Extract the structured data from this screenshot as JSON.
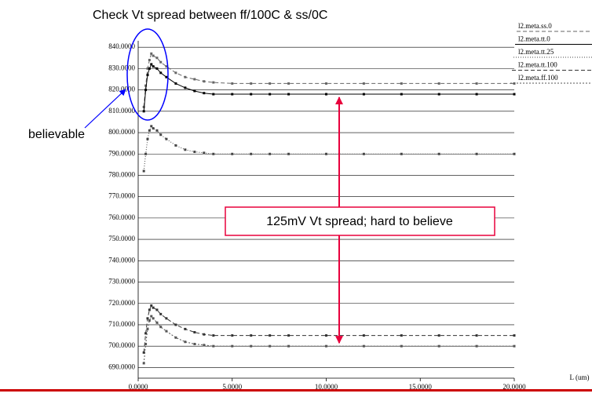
{
  "chart_data": {
    "type": "line",
    "title": "Check Vt spread between ff/100C & ss/0C",
    "xlabel": "L (um)",
    "annotations": [
      "believable",
      "125mV Vt spread; hard to believe"
    ],
    "x": [
      0.3,
      0.4,
      0.5,
      0.6,
      0.7,
      0.8,
      1.0,
      1.2,
      1.5,
      2.0,
      2.5,
      3.0,
      3.5,
      4.0,
      5,
      6,
      7,
      8,
      10,
      12,
      14,
      16,
      18,
      20
    ],
    "series": [
      {
        "name": "l2.meta.ss.0",
        "color": "#666666",
        "dash": "5,3",
        "values": [
          812,
          822,
          830,
          834,
          837,
          836,
          835,
          833,
          831,
          828,
          826,
          825,
          824,
          823.5,
          823,
          823,
          823,
          823,
          823,
          823,
          823,
          823,
          823,
          823
        ]
      },
      {
        "name": "l2.meta.tt.0",
        "color": "#000000",
        "dash": "none",
        "values": [
          810,
          820,
          827,
          830,
          832,
          831,
          830,
          828,
          826,
          823,
          821,
          819.5,
          818.5,
          818,
          818,
          818,
          818,
          818,
          818,
          818,
          818,
          818,
          818,
          818
        ]
      },
      {
        "name": "l2.meta.tt.25",
        "color": "#444444",
        "dash": "1,2",
        "values": [
          782,
          790,
          797,
          801,
          803,
          802,
          801,
          799,
          797,
          794,
          792,
          791,
          790.5,
          790,
          790,
          790,
          790,
          790,
          790,
          790,
          790,
          790,
          790,
          790
        ]
      },
      {
        "name": "l2.meta.tt.100",
        "color": "#333333",
        "dash": "5,3",
        "values": [
          697,
          706,
          713,
          717,
          719,
          718,
          717,
          715,
          713,
          710,
          708,
          706.5,
          705.5,
          705,
          705,
          705,
          705,
          705,
          705,
          705,
          705,
          705,
          705,
          705
        ]
      },
      {
        "name": "l2.meta.ff.100",
        "color": "#555555",
        "dash": "2,2",
        "values": [
          692,
          701,
          708,
          712,
          714,
          713,
          711,
          709,
          707,
          704,
          702,
          701,
          700.5,
          700,
          700,
          700,
          700,
          700,
          700,
          700,
          700,
          700,
          700,
          700
        ]
      }
    ],
    "xlim": [
      0,
      20
    ],
    "xticks": [
      {
        "value": 0,
        "label": "0.0000"
      },
      {
        "value": 5,
        "label": "5.0000"
      },
      {
        "value": 10,
        "label": "10.0000"
      },
      {
        "value": 15,
        "label": "15.0000"
      },
      {
        "value": 20,
        "label": "20.0000"
      }
    ],
    "ylim": [
      685,
      843
    ],
    "yticks": [
      {
        "value": 690,
        "label": "690.0000"
      },
      {
        "value": 700,
        "label": "700.0000"
      },
      {
        "value": 710,
        "label": "710.0000"
      },
      {
        "value": 720,
        "label": "720.0000"
      },
      {
        "value": 730,
        "label": "730.0000"
      },
      {
        "value": 740,
        "label": "740.0000"
      },
      {
        "value": 750,
        "label": "750.0000"
      },
      {
        "value": 760,
        "label": "760.0000"
      },
      {
        "value": 770,
        "label": "770.0000"
      },
      {
        "value": 780,
        "label": "780.0000"
      },
      {
        "value": 790,
        "label": "790.0000"
      },
      {
        "value": 800,
        "label": "800.0000"
      },
      {
        "value": 810,
        "label": "810.0000"
      },
      {
        "value": 820,
        "label": "820.0000"
      },
      {
        "value": 830,
        "label": "830.0000"
      },
      {
        "value": 840,
        "label": "840.0000"
      }
    ],
    "grid": true
  }
}
